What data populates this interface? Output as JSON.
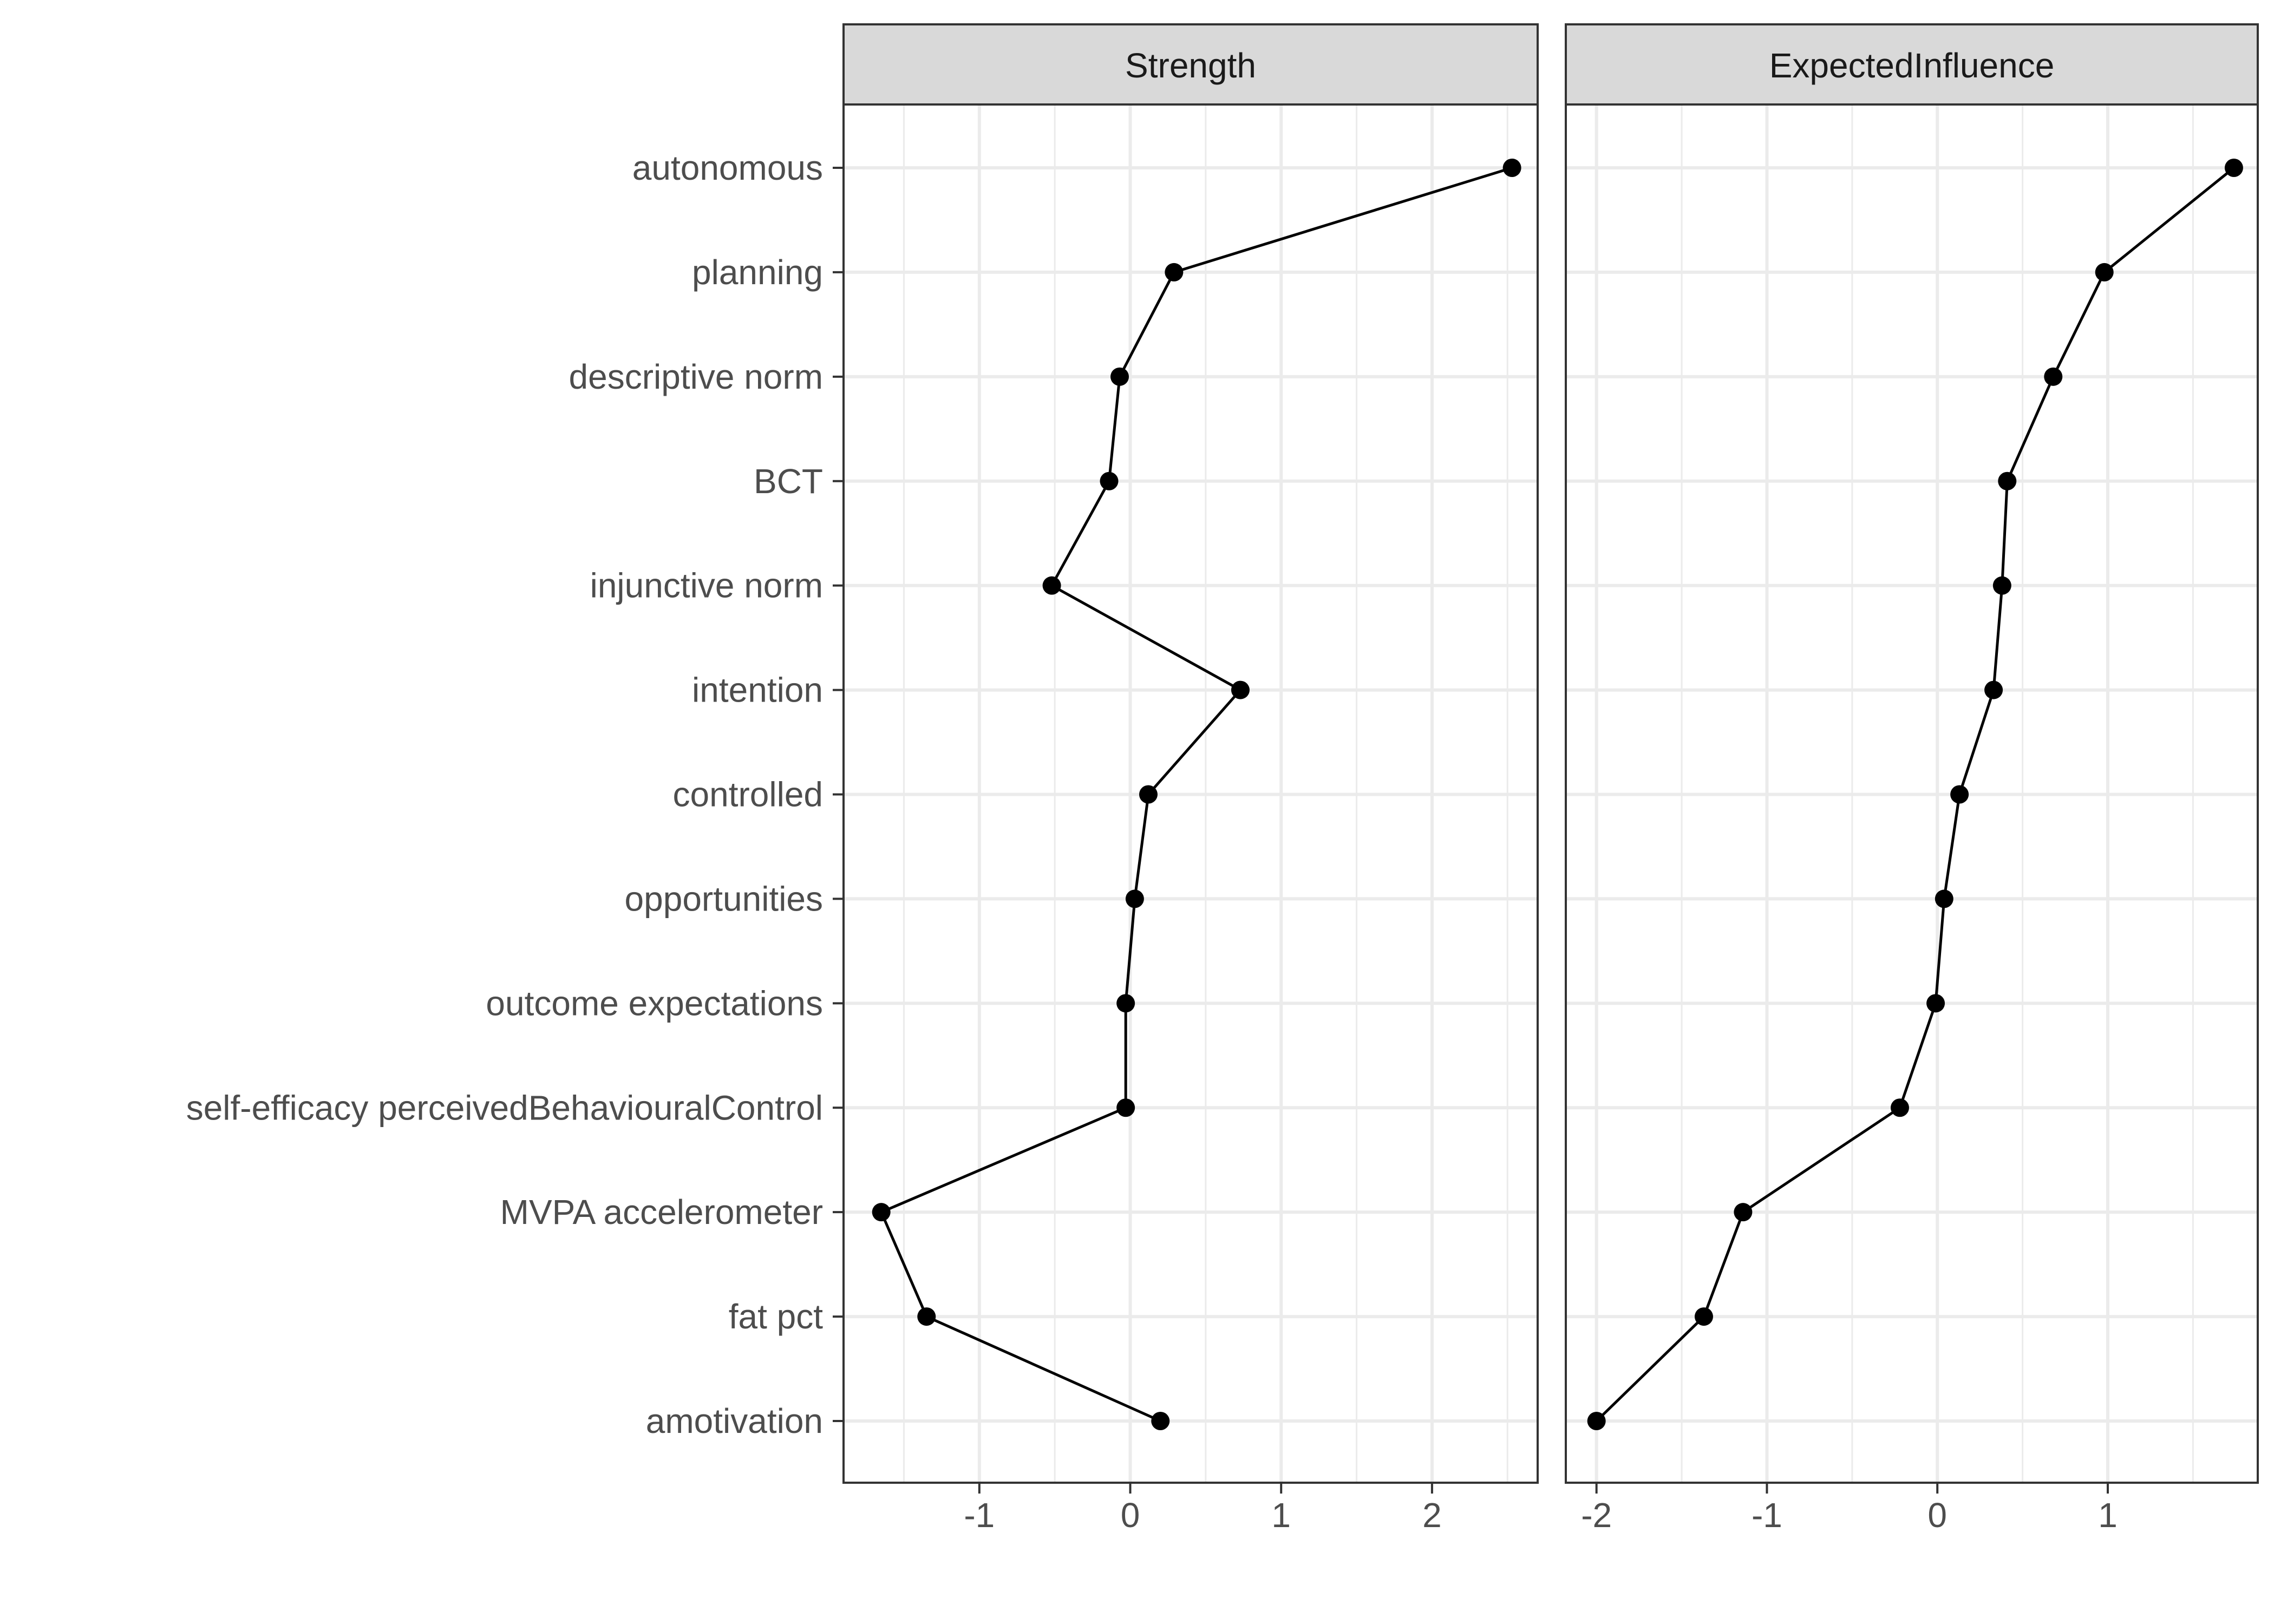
{
  "chart_data": {
    "type": "line",
    "categories": [
      "autonomous",
      "planning",
      "descriptive norm",
      "BCT",
      "injunctive norm",
      "intention",
      "controlled",
      "opportunities",
      "outcome expectations",
      "self-efficacy perceivedBehaviouralControl",
      "MVPA accelerometer",
      "fat pct",
      "amotivation"
    ],
    "panels": [
      {
        "strip_label": "Strength",
        "xlim": [
          -1.9,
          2.7
        ],
        "major_ticks": [
          -1,
          0,
          1,
          2
        ],
        "tick_labels": [
          "-1",
          "0",
          "1",
          "2"
        ],
        "values": [
          2.53,
          0.29,
          -0.07,
          -0.14,
          -0.52,
          0.73,
          0.12,
          0.03,
          -0.03,
          -0.03,
          -1.65,
          -1.35,
          0.2
        ]
      },
      {
        "strip_label": "ExpectedInfluence",
        "xlim": [
          -2.18,
          1.88
        ],
        "major_ticks": [
          -2,
          -1,
          0,
          1
        ],
        "tick_labels": [
          "-2",
          "-1",
          "0",
          "1"
        ],
        "values": [
          1.74,
          0.98,
          0.68,
          0.41,
          0.38,
          0.33,
          0.13,
          0.04,
          -0.01,
          -0.22,
          -1.14,
          -1.37,
          -2.0
        ]
      }
    ],
    "grid": true,
    "legend": "none"
  }
}
